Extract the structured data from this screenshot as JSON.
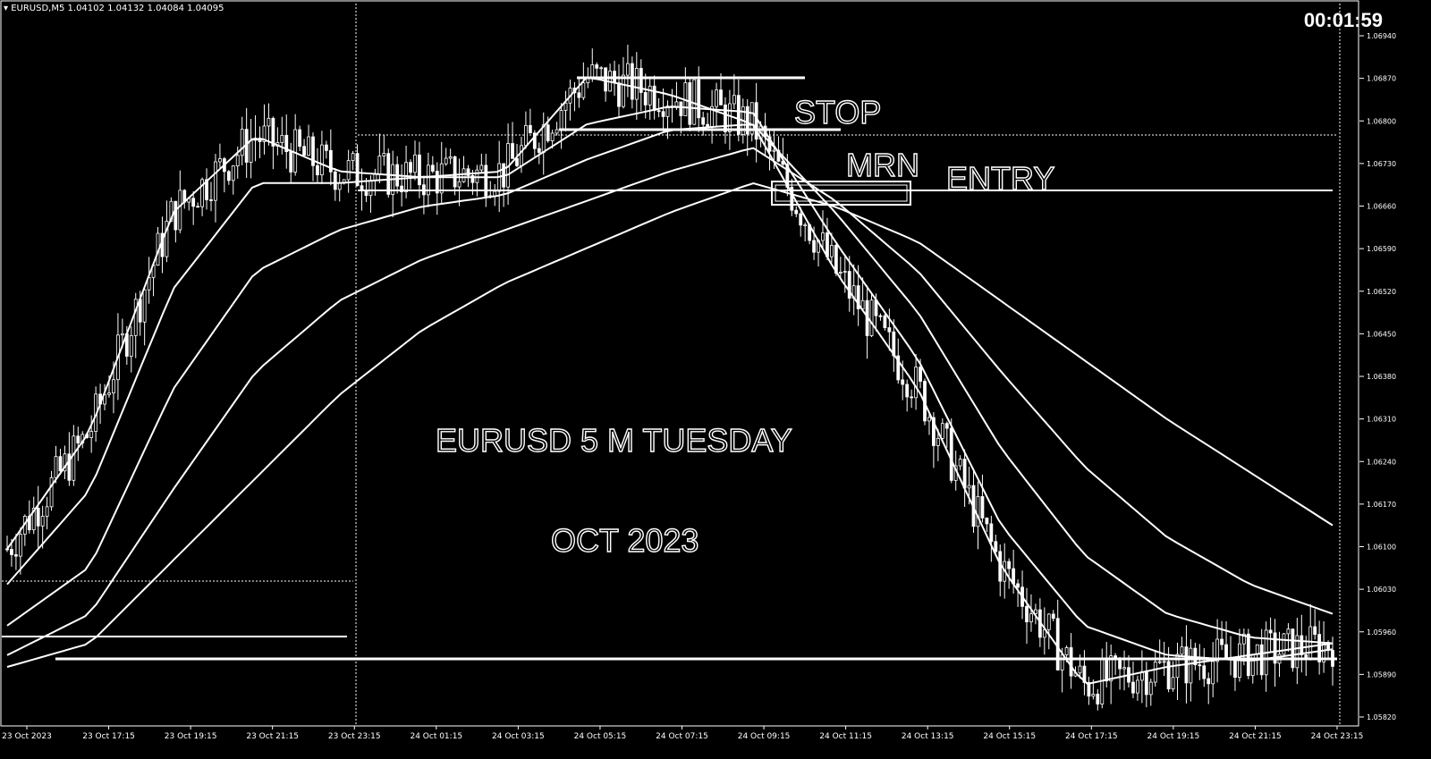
{
  "header": {
    "symbol": "EURUSD,M5",
    "ohlc": "1.04102 1.04132 1.04084 1.04095",
    "timer": "00:01:59"
  },
  "annotations": {
    "stop": "STOP",
    "mrn": "MRN",
    "entry": "ENTRY",
    "title": "EURUSD 5 M TUESDAY",
    "subtitle": "OCT 2023"
  },
  "chart_data": {
    "type": "line",
    "x": [
      "23 Oct 2023",
      "23 Oct 17:15",
      "23 Oct 19:15",
      "23 Oct 21:15",
      "23 Oct 23:15",
      "24 Oct 01:15",
      "24 Oct 03:15",
      "24 Oct 05:15",
      "24 Oct 07:15",
      "24 Oct 09:15",
      "24 Oct 11:15",
      "24 Oct 13:15",
      "24 Oct 15:15",
      "24 Oct 17:15",
      "24 Oct 19:15",
      "24 Oct 21:15",
      "24 Oct 23:15"
    ],
    "y_ticks": [
      "1.06940",
      "1.06870",
      "1.06800",
      "1.06730",
      "1.06660",
      "1.06590",
      "1.06520",
      "1.06450",
      "1.06380",
      "1.06310",
      "1.06240",
      "1.06170",
      "1.06100",
      "1.06030",
      "1.05960",
      "1.05890",
      "1.05820"
    ],
    "ylim": [
      1.0578,
      1.0698
    ],
    "series": [
      {
        "values": [
          1.0608,
          1.0628,
          1.0665,
          1.0678,
          1.0672,
          1.0671,
          1.0672,
          1.0688,
          1.0685,
          1.068,
          1.0655,
          1.0635,
          1.0605,
          1.0585,
          1.0588,
          1.059,
          1.0592
        ]
      },
      {
        "values": [
          1.0602,
          1.0618,
          1.0652,
          1.067,
          1.067,
          1.0671,
          1.0671,
          1.068,
          1.0683,
          1.0682,
          1.066,
          1.064,
          1.0612,
          1.0595,
          1.059,
          1.0589,
          1.0591
        ]
      },
      {
        "values": [
          1.0595,
          1.0605,
          1.0635,
          1.0655,
          1.0662,
          1.0666,
          1.0668,
          1.0674,
          1.0679,
          1.068,
          1.0665,
          1.0648,
          1.0625,
          1.0607,
          1.0597,
          1.0593,
          1.0592
        ]
      },
      {
        "values": [
          1.059,
          1.0597,
          1.0618,
          1.0638,
          1.065,
          1.0657,
          1.0662,
          1.0667,
          1.0672,
          1.0676,
          1.0667,
          1.0655,
          1.0638,
          1.0622,
          1.061,
          1.0602,
          1.0597
        ]
      },
      {
        "values": [
          1.0588,
          1.0592,
          1.0606,
          1.062,
          1.0634,
          1.0645,
          1.0653,
          1.0659,
          1.0665,
          1.067,
          1.0666,
          1.066,
          1.065,
          1.064,
          1.063,
          1.0621,
          1.0612
        ]
      }
    ],
    "levels": {
      "stop": 1.0683,
      "entry": 1.0671,
      "support": 1.0593
    }
  }
}
